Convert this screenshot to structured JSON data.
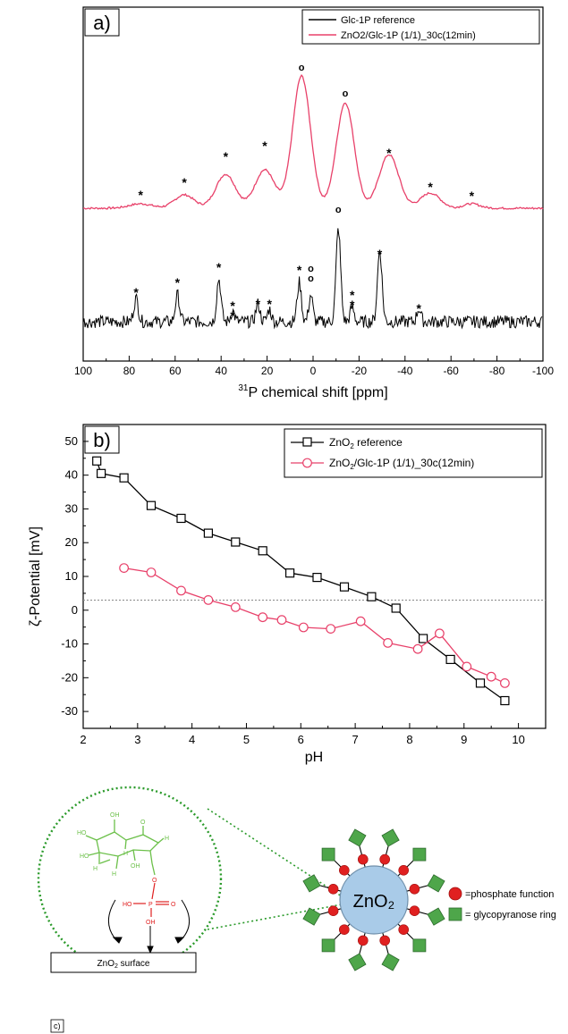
{
  "panel_a": {
    "label": "a)",
    "xlabel_sup": "31",
    "xlabel": "P chemical shift [ppm]",
    "legend": [
      "Glc-1P reference",
      "ZnO2/Glc-1P (1/1)_30c(12min)"
    ],
    "star": "*",
    "circle": "o"
  },
  "panel_b": {
    "label": "b)",
    "xlabel": "pH",
    "ylabel": "ζ-Potential [mV]",
    "legend_1_pre": "ZnO",
    "legend_1_sub": "2",
    "legend_1_post": " reference",
    "legend_2_pre": "ZnO",
    "legend_2_sub": "2",
    "legend_2_post": "/Glc-1P (1/1)_30c(12min)"
  },
  "panel_c": {
    "label": "c)",
    "core": "ZnO₂",
    "surface_pre": "ZnO",
    "surface_sub": "2",
    "surface_post": " surface",
    "legend": [
      "=phosphate function",
      "= glycopyranose ring"
    ],
    "mol": {
      "oh": "OH",
      "h": "H",
      "o": "O",
      "p": "P",
      "ho": "HO"
    }
  },
  "colors": {
    "black": "#000000",
    "red": "#e8416a",
    "green": "#6cc04a",
    "core": "#a9cbe8",
    "dot": "#e02020",
    "ring": "#4ea64a",
    "dashed": "#2a9a2a"
  },
  "chart_data": [
    {
      "type": "line",
      "xlabel": "31P chemical shift [ppm]",
      "xlim": [
        100,
        -100
      ],
      "x_ticks": [
        100,
        80,
        60,
        40,
        20,
        0,
        -20,
        -40,
        -60,
        -80,
        -100
      ],
      "series": [
        {
          "name": "Glc-1P reference",
          "peaks_ppm": [
            77,
            59,
            41,
            35,
            24,
            19,
            6,
            1,
            -11,
            -17,
            -29,
            -46
          ],
          "marked_spinning_sidebands": [
            77,
            59,
            41,
            35,
            24,
            19,
            6,
            -17,
            -29,
            -46
          ],
          "marked_isotropic": [
            1,
            -11
          ]
        },
        {
          "name": "ZnO2/Glc-1P (1/1)_30c(12min)",
          "peaks_ppm": [
            75,
            56,
            38,
            21,
            5,
            -14,
            -33,
            -51,
            -69
          ],
          "marked_spinning_sidebands": [
            75,
            56,
            38,
            21,
            -33,
            -51,
            -69
          ],
          "marked_isotropic": [
            5,
            -14
          ]
        }
      ]
    },
    {
      "type": "line",
      "xlabel": "pH",
      "ylabel": "ζ-Potential [mV]",
      "xlim": [
        2,
        10.5
      ],
      "ylim": [
        -35,
        55
      ],
      "x_ticks": [
        2,
        3,
        4,
        5,
        6,
        7,
        8,
        9,
        10
      ],
      "y_ticks": [
        -30,
        -20,
        -10,
        0,
        10,
        20,
        30,
        40,
        50
      ],
      "reference_line_y": 3,
      "series": [
        {
          "name": "ZnO2 reference",
          "x": [
            2.25,
            2.33,
            2.75,
            3.25,
            3.8,
            4.3,
            4.8,
            5.3,
            5.8,
            6.3,
            6.8,
            7.3,
            7.75,
            8.25,
            8.75,
            9.3,
            9.75
          ],
          "y": [
            44.2,
            40.5,
            39.2,
            31,
            27.2,
            22.8,
            20.2,
            17.6,
            11,
            9.7,
            6.9,
            4,
            0.6,
            -8.4,
            -14.6,
            -21.6,
            -26.8
          ]
        },
        {
          "name": "ZnO2/Glc-1P (1/1)_30c(12min)",
          "x": [
            2.75,
            3.25,
            3.8,
            4.3,
            4.8,
            5.3,
            5.65,
            6.05,
            6.55,
            7.1,
            7.6,
            8.15,
            8.55,
            9.05,
            9.5,
            9.75
          ],
          "y": [
            12.5,
            11.2,
            5.8,
            3,
            0.9,
            -2.1,
            -2.9,
            -5.1,
            -5.5,
            -3.3,
            -9.7,
            -11.5,
            -6.9,
            -16.7,
            -19.7,
            -21.6
          ]
        }
      ]
    }
  ]
}
